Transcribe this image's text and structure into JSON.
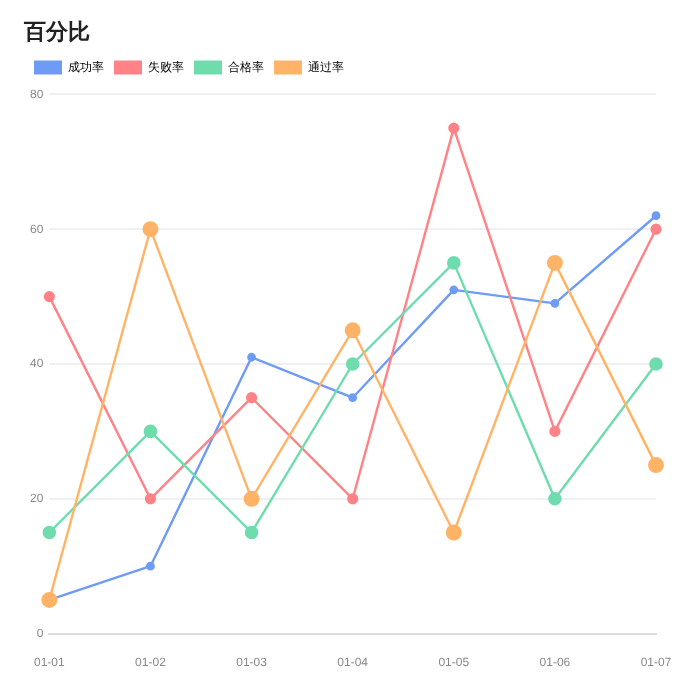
{
  "chart_data": {
    "type": "line",
    "title": "百分比",
    "categories": [
      "01-01",
      "01-02",
      "01-03",
      "01-04",
      "01-05",
      "01-06",
      "01-07"
    ],
    "series": [
      {
        "name": "成功率",
        "color": "#6e9bf5",
        "values": [
          5,
          10,
          41,
          35,
          51,
          49,
          62
        ]
      },
      {
        "name": "失败率",
        "color": "#ff8287",
        "values": [
          50,
          20,
          35,
          20,
          75,
          30,
          60
        ]
      },
      {
        "name": "合格率",
        "color": "#6fdcae",
        "values": [
          15,
          30,
          15,
          40,
          55,
          20,
          40
        ]
      },
      {
        "name": "通过率",
        "color": "#ffb366",
        "values": [
          5,
          60,
          20,
          45,
          15,
          55,
          25
        ]
      }
    ],
    "ylim": [
      0,
      80
    ],
    "yticks": [
      0,
      20,
      40,
      60,
      80
    ],
    "grid": "y",
    "legend": "top left",
    "marker": "circle",
    "line_style": "solid"
  }
}
